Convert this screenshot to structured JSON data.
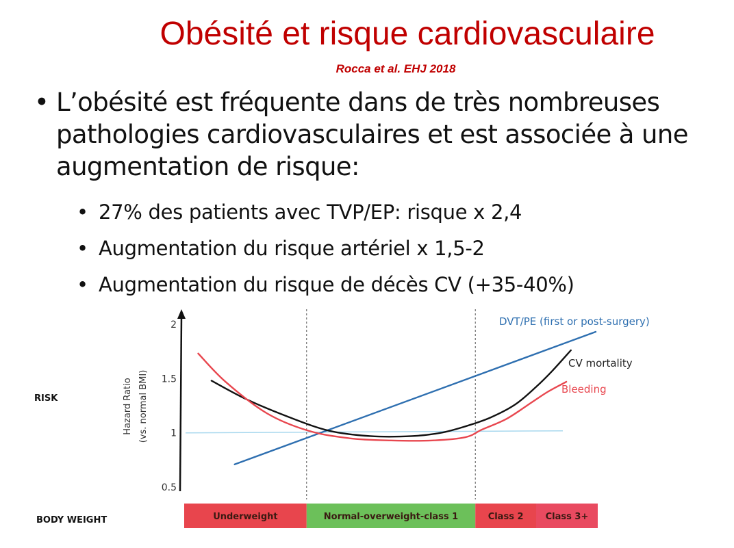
{
  "slide": {
    "title": "Obésité et risque cardiovasculaire",
    "citation": "Rocca et al. EHJ 2018",
    "bullet_symbol": "•",
    "lead": "L’obésité est fréquente dans de très nombreuses pathologies cardiovasculaires et est associée à une augmentation de risque:",
    "subpoints": [
      "27% des patients avec TVP/EP: risque x 2,4",
      "Augmentation du risque artériel x 1,5-2",
      "Augmentation du risque de décès CV (+35-40%)"
    ]
  },
  "chart_data": {
    "type": "line",
    "title": "",
    "ylabel_line1": "Hazard Ratio",
    "ylabel_line2": "(vs. normal BMI)",
    "left_labels": {
      "risk": "RISK",
      "body_weight": "BODY WEIGHT"
    },
    "yticks": [
      {
        "value": 0.5,
        "label": "0.5"
      },
      {
        "value": 1,
        "label": "1"
      },
      {
        "value": 1.5,
        "label": "1.5"
      },
      {
        "value": 2,
        "label": "2"
      }
    ],
    "ylim": [
      0.4,
      2.1
    ],
    "xlim": [
      0,
      100
    ],
    "reference_line": {
      "value": 1,
      "color": "#a8d8ee"
    },
    "boundaries_x": [
      29.6,
      70.4
    ],
    "categories": [
      {
        "label": "Underweight",
        "x_start": 0,
        "x_end": 29.6,
        "color": "#e8454d"
      },
      {
        "label": "Normal-overweight-class 1",
        "x_start": 29.6,
        "x_end": 70.4,
        "color": "#6cc05a"
      },
      {
        "label": "Class 2",
        "x_start": 70.4,
        "x_end": 85.1,
        "color": "#e8454d"
      },
      {
        "label": "Class 3+",
        "x_start": 85.1,
        "x_end": 100,
        "color": "#e94a60"
      }
    ],
    "series": [
      {
        "name": "DVT/PE (first or post-surgery)",
        "color": "#2e6fb0",
        "label_color": "#2e6fb0",
        "x": [
          12.2,
          99.5
        ],
        "values": [
          0.71,
          1.93
        ]
      },
      {
        "name": "CV mortality",
        "color": "#111111",
        "label_color": "#222222",
        "x": [
          6.6,
          15,
          25,
          35,
          45,
          55,
          62,
          68,
          74,
          80,
          85,
          89,
          93.5
        ],
        "values": [
          1.48,
          1.31,
          1.15,
          1.02,
          0.97,
          0.97,
          1.0,
          1.06,
          1.14,
          1.26,
          1.42,
          1.57,
          1.76
        ]
      },
      {
        "name": "Bleeding",
        "color": "#e8474f",
        "label_color": "#e8474f",
        "x": [
          3.4,
          10,
          20,
          30,
          40,
          50,
          60,
          68,
          72,
          78,
          84,
          88,
          92.4
        ],
        "values": [
          1.73,
          1.47,
          1.18,
          1.02,
          0.95,
          0.93,
          0.93,
          0.96,
          1.03,
          1.13,
          1.28,
          1.38,
          1.47
        ]
      }
    ]
  }
}
